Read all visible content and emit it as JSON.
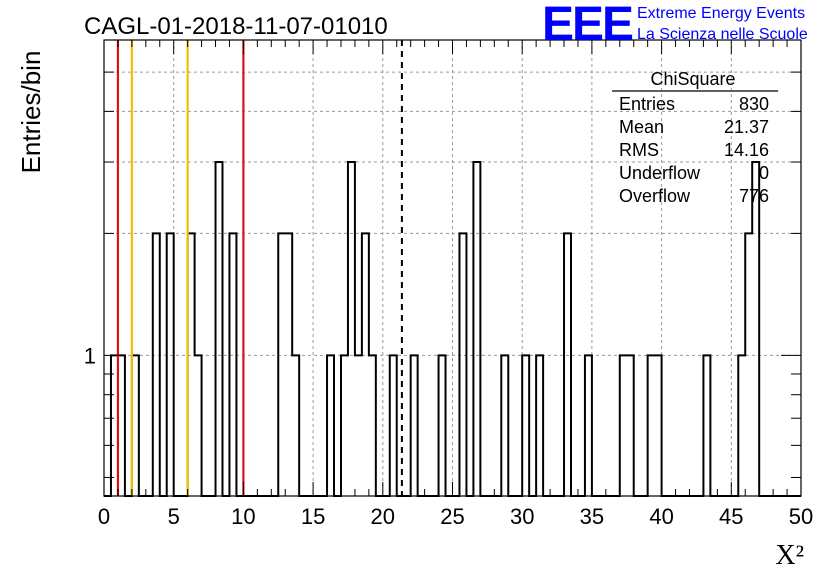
{
  "title": "CAGL-01-2018-11-07-01010",
  "brand": {
    "logo_text": "EEE",
    "line1": "Extreme Energy Events",
    "line2": "La Scienza nelle Scuole",
    "color": "#0000ff"
  },
  "stats_box": {
    "title": "ChiSquare",
    "rows": [
      {
        "label": "Entries",
        "value": "830"
      },
      {
        "label": "Mean",
        "value": "21.37"
      },
      {
        "label": "RMS",
        "value": "14.16"
      },
      {
        "label": "Underflow",
        "value": "0"
      },
      {
        "label": "Overflow",
        "value": "776"
      }
    ]
  },
  "chart_data": {
    "type": "histogram",
    "title": "CAGL-01-2018-11-07-01010",
    "xlabel": "X²",
    "ylabel": "Entries/bin",
    "xlim": [
      0,
      50
    ],
    "ylim": [
      0.45,
      6
    ],
    "yscale": "log",
    "grid": true,
    "bin_width": 0.5,
    "x_ticks": [
      "0",
      "5",
      "10",
      "15",
      "20",
      "25",
      "30",
      "35",
      "40",
      "45",
      "50"
    ],
    "y_tick_labels": [
      {
        "value": 1,
        "label": "1"
      }
    ],
    "bins": [
      {
        "x": 0.5,
        "y": 1
      },
      {
        "x": 1.0,
        "y": 1
      },
      {
        "x": 2.0,
        "y": 1
      },
      {
        "x": 3.5,
        "y": 2
      },
      {
        "x": 4.5,
        "y": 2
      },
      {
        "x": 6.0,
        "y": 2
      },
      {
        "x": 6.5,
        "y": 1
      },
      {
        "x": 8.0,
        "y": 3
      },
      {
        "x": 9.0,
        "y": 2
      },
      {
        "x": 12.5,
        "y": 2
      },
      {
        "x": 13.0,
        "y": 2
      },
      {
        "x": 13.5,
        "y": 1
      },
      {
        "x": 16.0,
        "y": 1
      },
      {
        "x": 17.0,
        "y": 1
      },
      {
        "x": 17.5,
        "y": 3
      },
      {
        "x": 18.0,
        "y": 1
      },
      {
        "x": 18.5,
        "y": 2
      },
      {
        "x": 19.0,
        "y": 1
      },
      {
        "x": 20.5,
        "y": 1
      },
      {
        "x": 22.0,
        "y": 1
      },
      {
        "x": 24.0,
        "y": 1
      },
      {
        "x": 25.5,
        "y": 2
      },
      {
        "x": 26.5,
        "y": 3
      },
      {
        "x": 28.5,
        "y": 1
      },
      {
        "x": 30.0,
        "y": 1
      },
      {
        "x": 31.0,
        "y": 1
      },
      {
        "x": 33.0,
        "y": 2
      },
      {
        "x": 34.5,
        "y": 1
      },
      {
        "x": 37.0,
        "y": 1
      },
      {
        "x": 37.5,
        "y": 1
      },
      {
        "x": 39.0,
        "y": 1
      },
      {
        "x": 39.5,
        "y": 1
      },
      {
        "x": 43.0,
        "y": 1
      },
      {
        "x": 45.5,
        "y": 1
      },
      {
        "x": 46.0,
        "y": 2
      },
      {
        "x": 46.5,
        "y": 3
      }
    ],
    "reference_lines": [
      {
        "x": 1.0,
        "color": "#e01010",
        "style": "solid"
      },
      {
        "x": 2.0,
        "color": "#f0c000",
        "style": "solid"
      },
      {
        "x": 6.0,
        "color": "#f0c000",
        "style": "solid"
      },
      {
        "x": 10.0,
        "color": "#e01010",
        "style": "solid"
      },
      {
        "x": 21.37,
        "color": "#000000",
        "style": "dashed"
      }
    ]
  }
}
